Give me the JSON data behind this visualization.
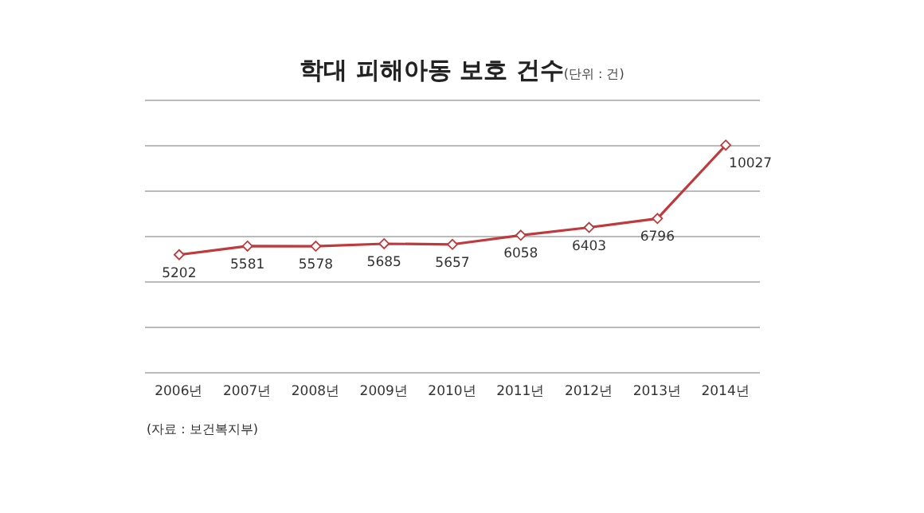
{
  "chart_data": {
    "type": "line",
    "title": "학대 피해아동 보호 건수",
    "subtitle": "(단위 : 건)",
    "categories": [
      "2006년",
      "2007년",
      "2008년",
      "2009년",
      "2010년",
      "2011년",
      "2012년",
      "2013년",
      "2014년"
    ],
    "series": [
      {
        "color": "#c0393b",
        "values": [
          5202,
          5581,
          5578,
          5685,
          5657,
          6058,
          6403,
          6796,
          10027
        ]
      }
    ],
    "ylim": [
      0,
      12000
    ],
    "yticks": [
      {
        "value": 0,
        "label": null
      },
      {
        "value": 2000,
        "label": null
      },
      {
        "value": 4000,
        "label": null
      },
      {
        "value": 6000,
        "label": null
      },
      {
        "value": 8000,
        "label": null
      },
      {
        "value": 10000,
        "label": null
      },
      {
        "value": 12000,
        "label": null
      }
    ],
    "grid": "y",
    "marker": "diamond",
    "line_style": "solid",
    "data_labels": true,
    "annotations": [
      "(자료 : 보건복지부)"
    ]
  }
}
